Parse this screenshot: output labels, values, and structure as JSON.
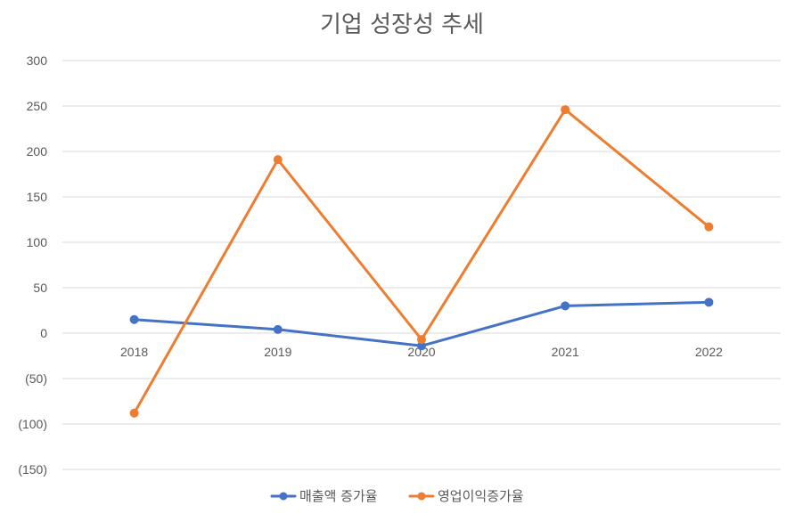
{
  "chart_data": {
    "type": "line",
    "title": "기업 성장성 추세",
    "xlabel": "",
    "ylabel": "",
    "categories": [
      "2018",
      "2019",
      "2020",
      "2021",
      "2022"
    ],
    "series": [
      {
        "name": "매출액 증가율",
        "values": [
          15,
          4,
          -14,
          30,
          34
        ],
        "color": "#4472c4"
      },
      {
        "name": "영업이익증가율",
        "values": [
          -88,
          191,
          -7,
          246,
          117
        ],
        "color": "#ed7d31"
      }
    ],
    "ylim": [
      -150,
      300
    ],
    "yticks": [
      300,
      250,
      200,
      150,
      100,
      50,
      0,
      -50,
      -100,
      -150
    ],
    "ytick_labels": [
      "300",
      "250",
      "200",
      "150",
      "100",
      "50",
      "0",
      "(50)",
      "(100)",
      "(150)"
    ],
    "grid": true,
    "legend": "bottom"
  }
}
